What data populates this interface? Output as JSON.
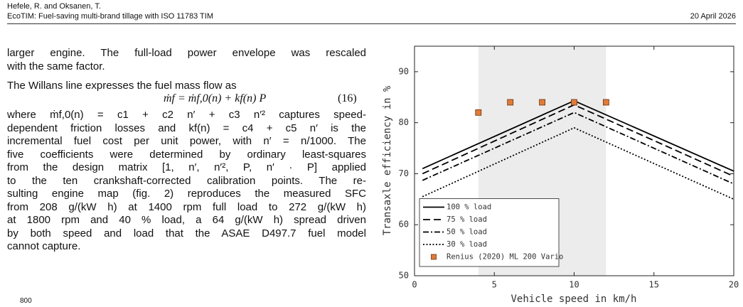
{
  "header": {
    "authors": "Hefele, R. and Oksanen, T.",
    "title": "EcoTIM: Fuel-saving multi-brand tillage with ISO 11783 TIM",
    "date": "20 April 2026"
  },
  "body": {
    "paragraphs": [
      [
        "larger engine. The full-load power envelope was rescaled",
        "with the same factor."
      ],
      [
        "The Willans line expresses the fuel mass flow as"
      ]
    ],
    "equation": {
      "text": "ṁf = ṁf,0(n) + kf(n) P",
      "number": "(16)"
    },
    "after": [
      "where ṁf,0(n) = c1 + c2 n′ + c3 n′² captures speed-",
      "dependent friction losses and kf(n) = c4 + c5 n′ is the",
      "incremental fuel cost per unit power, with n′ = n/1000. The",
      "five coefficients were determined by ordinary least-squares",
      "from the design matrix [1, n′, n′², P, n′ · P] applied",
      "to the ten crankshaft-corrected calibration points. The re-",
      "sulting engine map (fig. 2) reproduces the measured SFC",
      "from 208 g/(kW h) at 1400 rpm full load to 272 g/(kW h)",
      "at 1800 rpm and 40 % load, a 64 g/(kW h) spread driven",
      "by both speed and load that the ASAE D497.7 fuel model",
      "cannot capture."
    ],
    "next_figure_tick": "800"
  },
  "chart_data": {
    "type": "line",
    "xlabel": "Vehicle speed in km/h",
    "ylabel": "Transaxle efficiency in %",
    "x": [
      0.5,
      10,
      20
    ],
    "series": [
      {
        "name": "100 % load",
        "color": "#000000",
        "linestyle": "solid",
        "values": [
          71,
          84.3,
          70.5
        ]
      },
      {
        "name": "75 % load",
        "color": "#000000",
        "linestyle": "dashed",
        "values": [
          70,
          83.5,
          69.5
        ]
      },
      {
        "name": "50 % load",
        "color": "#000000",
        "linestyle": "dashdot",
        "values": [
          68.7,
          82,
          68
        ]
      },
      {
        "name": "30 % load",
        "color": "#000000",
        "linestyle": "dotted",
        "values": [
          65.5,
          79,
          65
        ]
      },
      {
        "name": "Renius (2020) ML 200 Vario",
        "type": "scatter",
        "color": "#e07b39",
        "x": [
          4,
          6,
          8,
          10,
          12
        ],
        "values": [
          82,
          84,
          84,
          84,
          84
        ]
      }
    ],
    "shaded_region": [
      4,
      12
    ],
    "shade_color": "#ececec",
    "xlim": [
      0,
      20
    ],
    "xticks": [
      0,
      5,
      10,
      15,
      20
    ],
    "ylim": [
      50,
      95
    ],
    "yticks": [
      50,
      60,
      70,
      80,
      90
    ],
    "grid": false,
    "legend": "lower left"
  }
}
